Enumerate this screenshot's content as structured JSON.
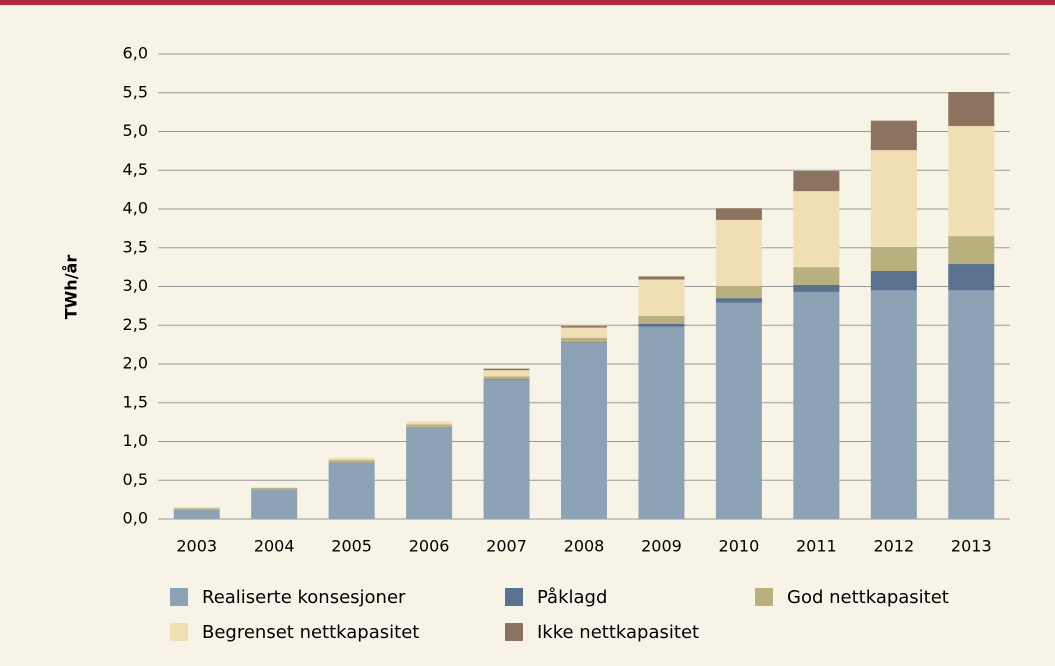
{
  "chart_data": {
    "type": "stacked_bar",
    "ylabel": "TWh/år",
    "categories": [
      "2003",
      "2004",
      "2005",
      "2006",
      "2007",
      "2008",
      "2009",
      "2010",
      "2011",
      "2012",
      "2013"
    ],
    "series": [
      {
        "name": "Realiserte konsesjoner",
        "color": "#8da2b5",
        "values": [
          0.12,
          0.38,
          0.73,
          1.19,
          1.79,
          2.27,
          2.48,
          2.79,
          2.93,
          2.95,
          2.95
        ]
      },
      {
        "name": "Påklagd",
        "color": "#5a7290",
        "values": [
          0,
          0,
          0,
          0,
          0.01,
          0.01,
          0.04,
          0.06,
          0.09,
          0.25,
          0.34
        ]
      },
      {
        "name": "God nettkapasitet",
        "color": "#b8b07e",
        "values": [
          0.02,
          0.02,
          0.03,
          0.03,
          0.04,
          0.06,
          0.1,
          0.16,
          0.23,
          0.31,
          0.36
        ]
      },
      {
        "name": "Begrenset nettkapasitet",
        "color": "#f0dfb5",
        "values": [
          0.01,
          0.01,
          0.03,
          0.04,
          0.08,
          0.13,
          0.47,
          0.85,
          0.98,
          1.25,
          1.42
        ]
      },
      {
        "name": "Ikke nettkapasitet",
        "color": "#8c735f",
        "values": [
          0,
          0,
          0,
          0,
          0.02,
          0.02,
          0.04,
          0.15,
          0.26,
          0.38,
          0.44
        ]
      }
    ],
    "ylim": [
      0,
      6
    ],
    "yticks": [
      {
        "value": 0,
        "label": "0,0"
      },
      {
        "value": 0.5,
        "label": "0,5"
      },
      {
        "value": 1,
        "label": "1,0"
      },
      {
        "value": 1.5,
        "label": "1,5"
      },
      {
        "value": 2,
        "label": "2,0"
      },
      {
        "value": 2.5,
        "label": "2,5"
      },
      {
        "value": 3,
        "label": "3,0"
      },
      {
        "value": 3.5,
        "label": "3,5"
      },
      {
        "value": 4,
        "label": "4,0"
      },
      {
        "value": 4.5,
        "label": "4,5"
      },
      {
        "value": 5,
        "label": "5,0"
      },
      {
        "value": 5.5,
        "label": "5,5"
      },
      {
        "value": 6,
        "label": "6,0"
      }
    ],
    "grid": true
  }
}
